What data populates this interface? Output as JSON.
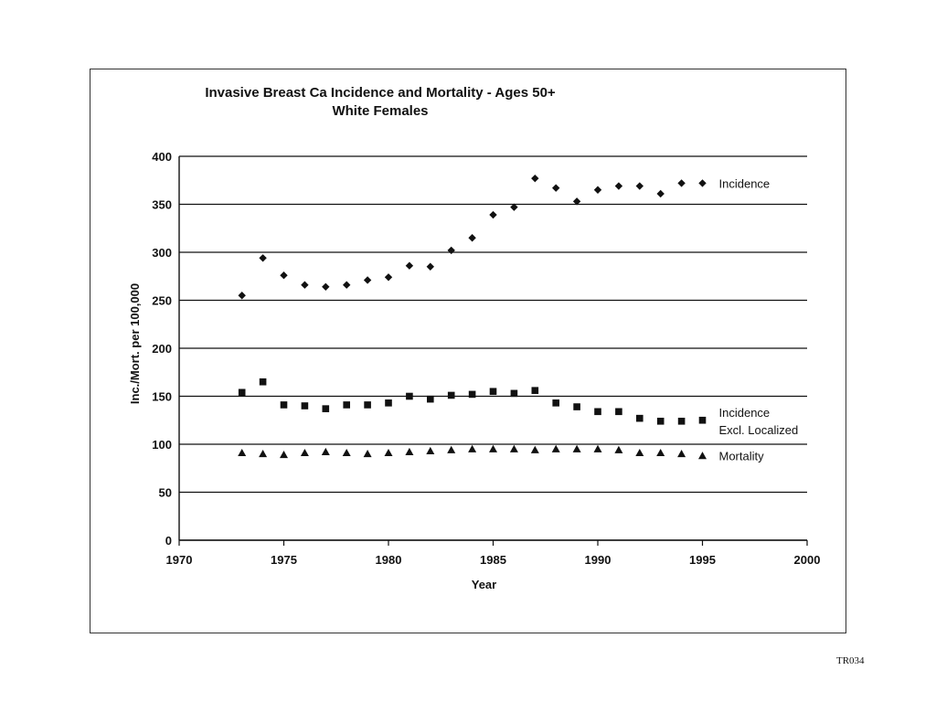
{
  "chart_data": {
    "type": "scatter",
    "title": "Invasive Breast Ca Incidence and Mortality  -  Ages 50+",
    "subtitle": "White Females",
    "xlabel": "Year",
    "ylabel": "Inc./Mort. per 100,000",
    "xlim": [
      1970,
      2000
    ],
    "ylim": [
      0,
      400
    ],
    "xticks": [
      1970,
      1975,
      1980,
      1985,
      1990,
      1995,
      2000
    ],
    "yticks": [
      0,
      50,
      100,
      150,
      200,
      250,
      300,
      350,
      400
    ],
    "grid": "horizontal",
    "x": [
      1973,
      1974,
      1975,
      1976,
      1977,
      1978,
      1979,
      1980,
      1981,
      1982,
      1983,
      1984,
      1985,
      1986,
      1987,
      1988,
      1989,
      1990,
      1991,
      1992,
      1993,
      1994,
      1995
    ],
    "series": [
      {
        "name": "Incidence",
        "marker": "diamond",
        "label_lines": [
          "Incidence"
        ],
        "values": [
          255,
          294,
          276,
          266,
          264,
          266,
          271,
          274,
          286,
          285,
          302,
          315,
          339,
          347,
          377,
          367,
          353,
          365,
          369,
          369,
          361,
          372,
          372
        ]
      },
      {
        "name": "Incidence Excl. Localized",
        "marker": "square",
        "label_lines": [
          "Incidence",
          "Excl. Localized"
        ],
        "values": [
          154,
          165,
          141,
          140,
          137,
          141,
          141,
          143,
          150,
          147,
          151,
          152,
          155,
          153,
          156,
          143,
          139,
          134,
          134,
          127,
          124,
          124,
          125
        ]
      },
      {
        "name": "Mortality",
        "marker": "triangle",
        "label_lines": [
          "Mortality"
        ],
        "values": [
          91,
          90,
          89,
          91,
          92,
          91,
          90,
          91,
          92,
          93,
          94,
          95,
          95,
          95,
          94,
          95,
          95,
          95,
          94,
          91,
          91,
          90,
          88
        ]
      }
    ]
  },
  "page": {
    "document_code": "TR034"
  }
}
